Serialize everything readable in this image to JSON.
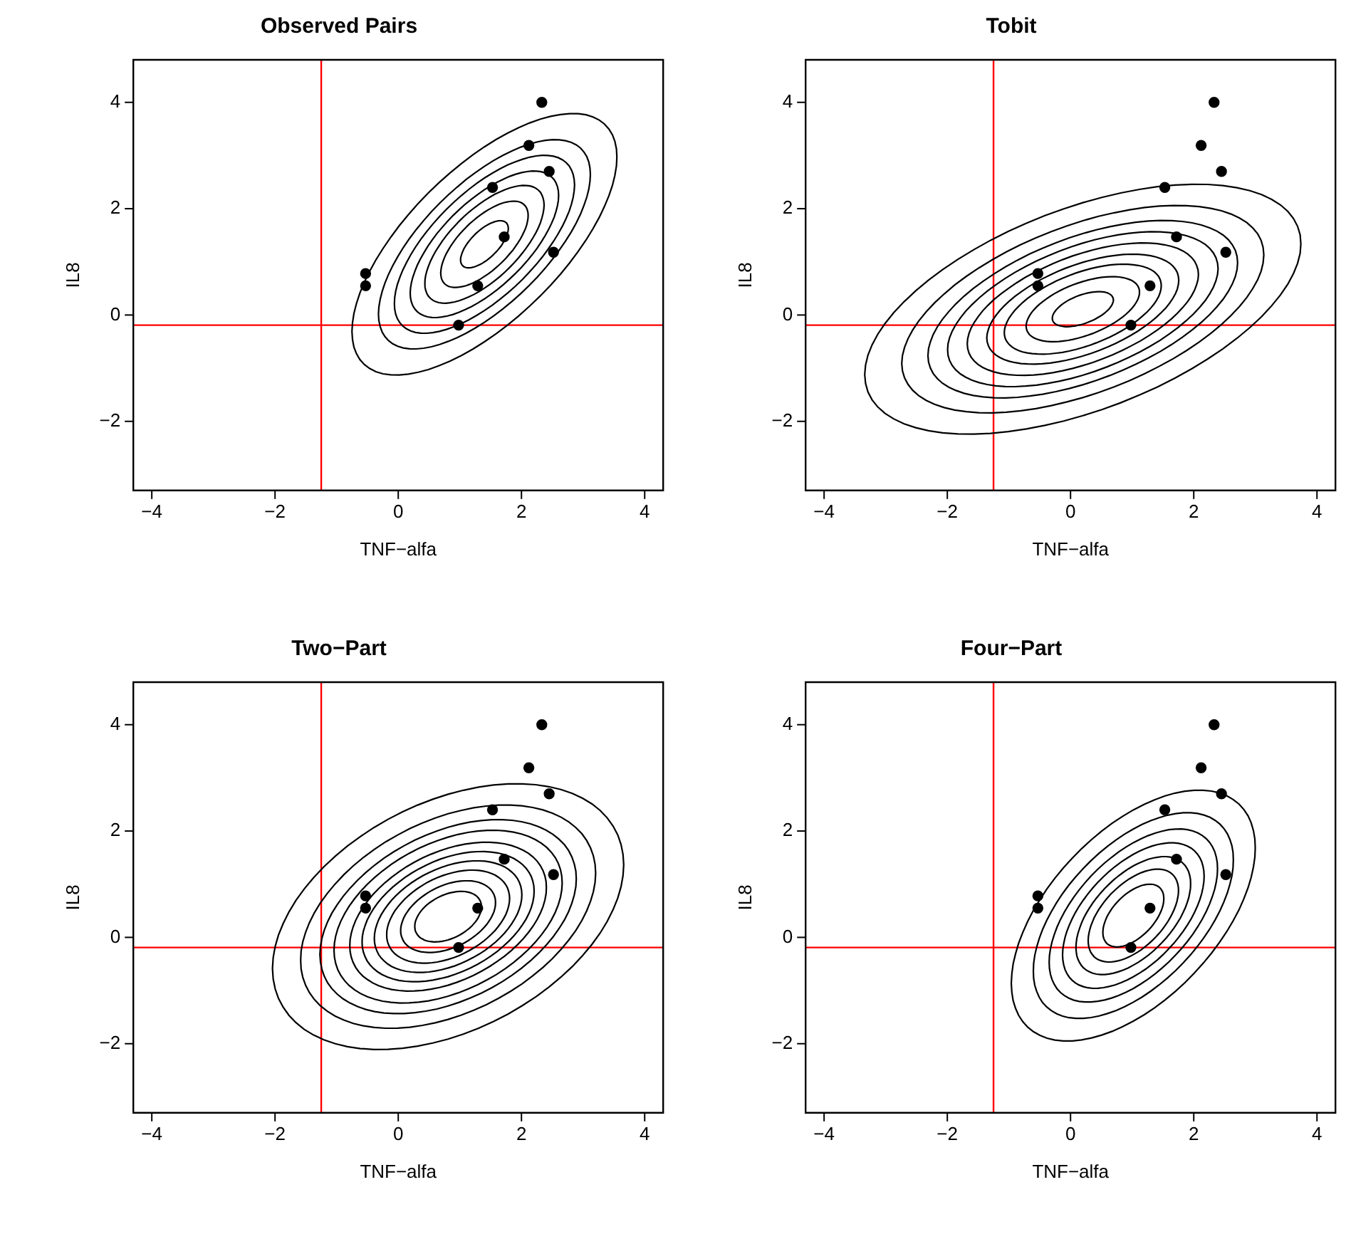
{
  "chart_data": [
    {
      "type": "scatter",
      "title": "Observed Pairs",
      "xlabel": "TNF−alfa",
      "ylabel": "IL8",
      "xlim": [
        -4.3,
        4.3
      ],
      "ylim": [
        -3.3,
        4.8
      ],
      "xticks": [
        -4,
        -2,
        0,
        2,
        4
      ],
      "yticks": [
        -2,
        0,
        2,
        4
      ],
      "ref_lines": [
        {
          "axis": "x",
          "value": -1.25,
          "color": "#ff0000"
        },
        {
          "axis": "y",
          "value": -0.19,
          "color": "#ff0000"
        }
      ],
      "series": [
        {
          "type": "scatter",
          "color": "#000000",
          "marker": "circle",
          "x": [
            -0.53,
            -0.53,
            0.98,
            1.29,
            1.72,
            1.53,
            2.12,
            2.33,
            2.45,
            2.52
          ],
          "values": [
            0.78,
            0.55,
            -0.19,
            0.55,
            1.47,
            2.4,
            3.19,
            4.0,
            2.7,
            1.18
          ]
        }
      ]
    },
    {
      "type": "scatter",
      "title": "Tobit",
      "xlabel": "TNF−alfa",
      "ylabel": "IL8",
      "xlim": [
        -4.3,
        4.3
      ],
      "ylim": [
        -3.3,
        4.8
      ],
      "xticks": [
        -4,
        -2,
        0,
        2,
        4
      ],
      "yticks": [
        -2,
        0,
        2,
        4
      ],
      "ref_lines": [
        {
          "axis": "x",
          "value": -1.25,
          "color": "#ff0000"
        },
        {
          "axis": "y",
          "value": -0.19,
          "color": "#ff0000"
        }
      ],
      "series": [
        {
          "type": "scatter",
          "color": "#000000",
          "marker": "circle",
          "x": [
            -0.53,
            -0.53,
            0.98,
            1.29,
            1.72,
            1.53,
            2.12,
            2.33,
            2.45,
            2.52
          ],
          "values": [
            0.78,
            0.55,
            -0.19,
            0.55,
            1.47,
            2.4,
            3.19,
            4.0,
            2.7,
            1.18
          ]
        }
      ]
    },
    {
      "type": "scatter",
      "title": "Two−Part",
      "xlabel": "TNF−alfa",
      "ylabel": "IL8",
      "xlim": [
        -4.3,
        4.3
      ],
      "ylim": [
        -3.3,
        4.8
      ],
      "xticks": [
        -4,
        -2,
        0,
        2,
        4
      ],
      "yticks": [
        -2,
        0,
        2,
        4
      ],
      "ref_lines": [
        {
          "axis": "x",
          "value": -1.25,
          "color": "#ff0000"
        },
        {
          "axis": "y",
          "value": -0.19,
          "color": "#ff0000"
        }
      ],
      "series": [
        {
          "type": "scatter",
          "color": "#000000",
          "marker": "circle",
          "x": [
            -0.53,
            -0.53,
            0.98,
            1.29,
            1.72,
            1.53,
            2.12,
            2.33,
            2.45,
            2.52
          ],
          "values": [
            0.78,
            0.55,
            -0.19,
            0.55,
            1.47,
            2.4,
            3.19,
            4.0,
            2.7,
            1.18
          ]
        }
      ]
    },
    {
      "type": "scatter",
      "title": "Four−Part",
      "xlabel": "TNF−alfa",
      "ylabel": "IL8",
      "xlim": [
        -4.3,
        4.3
      ],
      "ylim": [
        -3.3,
        4.8
      ],
      "xticks": [
        -4,
        -2,
        0,
        2,
        4
      ],
      "yticks": [
        -2,
        0,
        2,
        4
      ],
      "ref_lines": [
        {
          "axis": "x",
          "value": -1.25,
          "color": "#ff0000"
        },
        {
          "axis": "y",
          "value": -0.19,
          "color": "#ff0000"
        }
      ],
      "series": [
        {
          "type": "scatter",
          "color": "#000000",
          "marker": "circle",
          "x": [
            -0.53,
            -0.53,
            0.98,
            1.29,
            1.72,
            1.53,
            2.12,
            2.33,
            2.45,
            2.52
          ],
          "values": [
            0.78,
            0.55,
            -0.19,
            0.55,
            1.47,
            2.4,
            3.19,
            4.0,
            2.7,
            1.18
          ]
        }
      ]
    }
  ]
}
